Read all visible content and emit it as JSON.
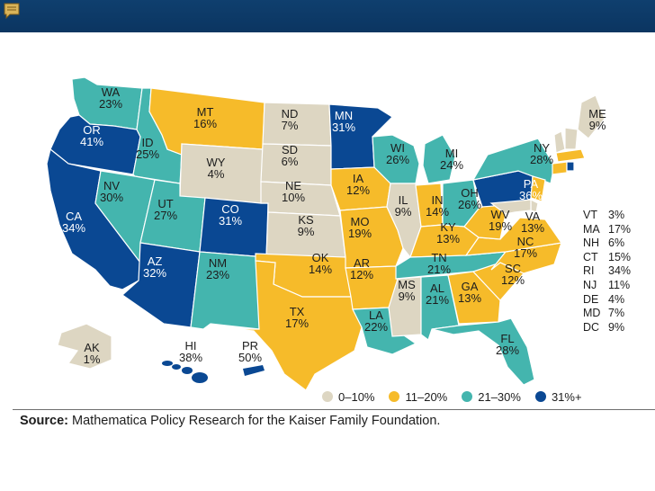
{
  "colors": {
    "range_0_10": "#ddd6c2",
    "range_11_20": "#f6bb2a",
    "range_21_30": "#44b5ae",
    "range_31_plus": "#0a4893",
    "header": "#0f3f6e"
  },
  "states": [
    {
      "abbr": "WA",
      "value": "23%",
      "bin": "21–30%"
    },
    {
      "abbr": "OR",
      "value": "41%",
      "bin": "31%+"
    },
    {
      "abbr": "CA",
      "value": "34%",
      "bin": "31%+"
    },
    {
      "abbr": "ID",
      "value": "25%",
      "bin": "21–30%"
    },
    {
      "abbr": "NV",
      "value": "30%",
      "bin": "21–30%"
    },
    {
      "abbr": "MT",
      "value": "16%",
      "bin": "11–20%"
    },
    {
      "abbr": "WY",
      "value": "4%",
      "bin": "0–10%"
    },
    {
      "abbr": "UT",
      "value": "27%",
      "bin": "21–30%"
    },
    {
      "abbr": "AZ",
      "value": "32%",
      "bin": "31%+"
    },
    {
      "abbr": "CO",
      "value": "31%",
      "bin": "31%+"
    },
    {
      "abbr": "NM",
      "value": "23%",
      "bin": "21–30%"
    },
    {
      "abbr": "ND",
      "value": "7%",
      "bin": "0–10%"
    },
    {
      "abbr": "SD",
      "value": "6%",
      "bin": "0–10%"
    },
    {
      "abbr": "NE",
      "value": "10%",
      "bin": "0–10%"
    },
    {
      "abbr": "KS",
      "value": "9%",
      "bin": "0–10%"
    },
    {
      "abbr": "OK",
      "value": "14%",
      "bin": "11–20%"
    },
    {
      "abbr": "TX",
      "value": "17%",
      "bin": "11–20%"
    },
    {
      "abbr": "MN",
      "value": "31%",
      "bin": "31%+"
    },
    {
      "abbr": "IA",
      "value": "12%",
      "bin": "11–20%"
    },
    {
      "abbr": "MO",
      "value": "19%",
      "bin": "11–20%"
    },
    {
      "abbr": "AR",
      "value": "12%",
      "bin": "11–20%"
    },
    {
      "abbr": "LA",
      "value": "22%",
      "bin": "21–30%"
    },
    {
      "abbr": "WI",
      "value": "26%",
      "bin": "21–30%"
    },
    {
      "abbr": "IL",
      "value": "9%",
      "bin": "0–10%"
    },
    {
      "abbr": "MI",
      "value": "24%",
      "bin": "21–30%"
    },
    {
      "abbr": "IN",
      "value": "14%",
      "bin": "11–20%"
    },
    {
      "abbr": "OH",
      "value": "26%",
      "bin": "21–30%"
    },
    {
      "abbr": "KY",
      "value": "13%",
      "bin": "11–20%"
    },
    {
      "abbr": "TN",
      "value": "21%",
      "bin": "21–30%"
    },
    {
      "abbr": "MS",
      "value": "9%",
      "bin": "0–10%"
    },
    {
      "abbr": "AL",
      "value": "21%",
      "bin": "21–30%"
    },
    {
      "abbr": "GA",
      "value": "13%",
      "bin": "11–20%"
    },
    {
      "abbr": "FL",
      "value": "28%",
      "bin": "21–30%"
    },
    {
      "abbr": "SC",
      "value": "12%",
      "bin": "11–20%"
    },
    {
      "abbr": "NC",
      "value": "17%",
      "bin": "11–20%"
    },
    {
      "abbr": "VA",
      "value": "13%",
      "bin": "11–20%"
    },
    {
      "abbr": "WV",
      "value": "19%",
      "bin": "11–20%"
    },
    {
      "abbr": "PA",
      "value": "36%",
      "bin": "31%+"
    },
    {
      "abbr": "NY",
      "value": "28%",
      "bin": "21–30%"
    },
    {
      "abbr": "ME",
      "value": "9%",
      "bin": "0–10%"
    },
    {
      "abbr": "AK",
      "value": "1%",
      "bin": "0–10%"
    },
    {
      "abbr": "HI",
      "value": "38%",
      "bin": "31%+"
    },
    {
      "abbr": "PR",
      "value": "50%",
      "bin": "31%+"
    }
  ],
  "small_states": [
    {
      "abbr": "VT",
      "value": "3%"
    },
    {
      "abbr": "MA",
      "value": "17%"
    },
    {
      "abbr": "NH",
      "value": "6%"
    },
    {
      "abbr": "CT",
      "value": "15%"
    },
    {
      "abbr": "RI",
      "value": "34%"
    },
    {
      "abbr": "NJ",
      "value": "11%"
    },
    {
      "abbr": "DE",
      "value": "4%"
    },
    {
      "abbr": "MD",
      "value": "7%"
    },
    {
      "abbr": "DC",
      "value": "9%"
    }
  ],
  "legend": [
    {
      "label": "0–10%",
      "color": "#ddd6c2"
    },
    {
      "label": "11–20%",
      "color": "#f6bb2a"
    },
    {
      "label": "21–30%",
      "color": "#44b5ae"
    },
    {
      "label": "31%+",
      "color": "#0a4893"
    }
  ],
  "source": {
    "label": "Source:",
    "text": " Mathematica Policy Research for the Kaiser Family Foundation."
  }
}
